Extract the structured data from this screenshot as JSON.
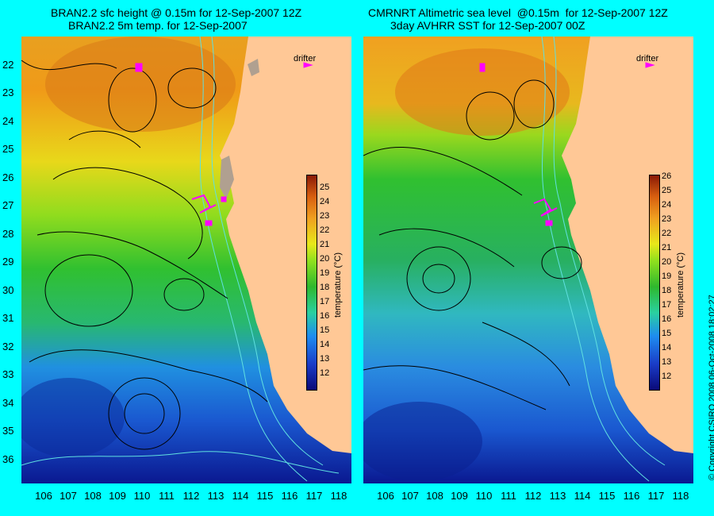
{
  "left_panel": {
    "title_line1": "BRAN2.2 sfc height @ 0.15m for 12-Sep-2007 12Z",
    "title_line2": "BRAN2.2 5m temp. for 12-Sep-2007",
    "drifter_label": "drifter",
    "colorbar_ticks": [
      "25",
      "24",
      "23",
      "22",
      "21",
      "20",
      "19",
      "18",
      "17",
      "16",
      "15",
      "14",
      "13",
      "12"
    ],
    "colorbar_label": "temperature (°C)"
  },
  "right_panel": {
    "title_line1": "CMRNRT Altimetric sea level  @0.15m  for 12-Sep-2007 12Z",
    "title_line2": "3day AVHRR SST for 12-Sep-2007 00Z",
    "drifter_label": "drifter",
    "colorbar_ticks": [
      "26",
      "25",
      "24",
      "23",
      "22",
      "21",
      "20",
      "19",
      "18",
      "17",
      "16",
      "15",
      "14",
      "13",
      "12"
    ],
    "colorbar_label": "temperature (°C)"
  },
  "y_ticks": [
    "22",
    "23",
    "24",
    "25",
    "26",
    "27",
    "28",
    "29",
    "30",
    "31",
    "32",
    "33",
    "34",
    "35",
    "36"
  ],
  "x_ticks": [
    "106",
    "107",
    "108",
    "109",
    "110",
    "111",
    "112",
    "113",
    "114",
    "115",
    "116",
    "117",
    "118"
  ],
  "copyright": "© Copyright CSIRO 2008   06-Oct-2008 18:02:27",
  "colors": {
    "background": "#00ffff",
    "land": "#ffc896",
    "drifter": "#ff00ff",
    "isobath": "#60e0e0"
  }
}
